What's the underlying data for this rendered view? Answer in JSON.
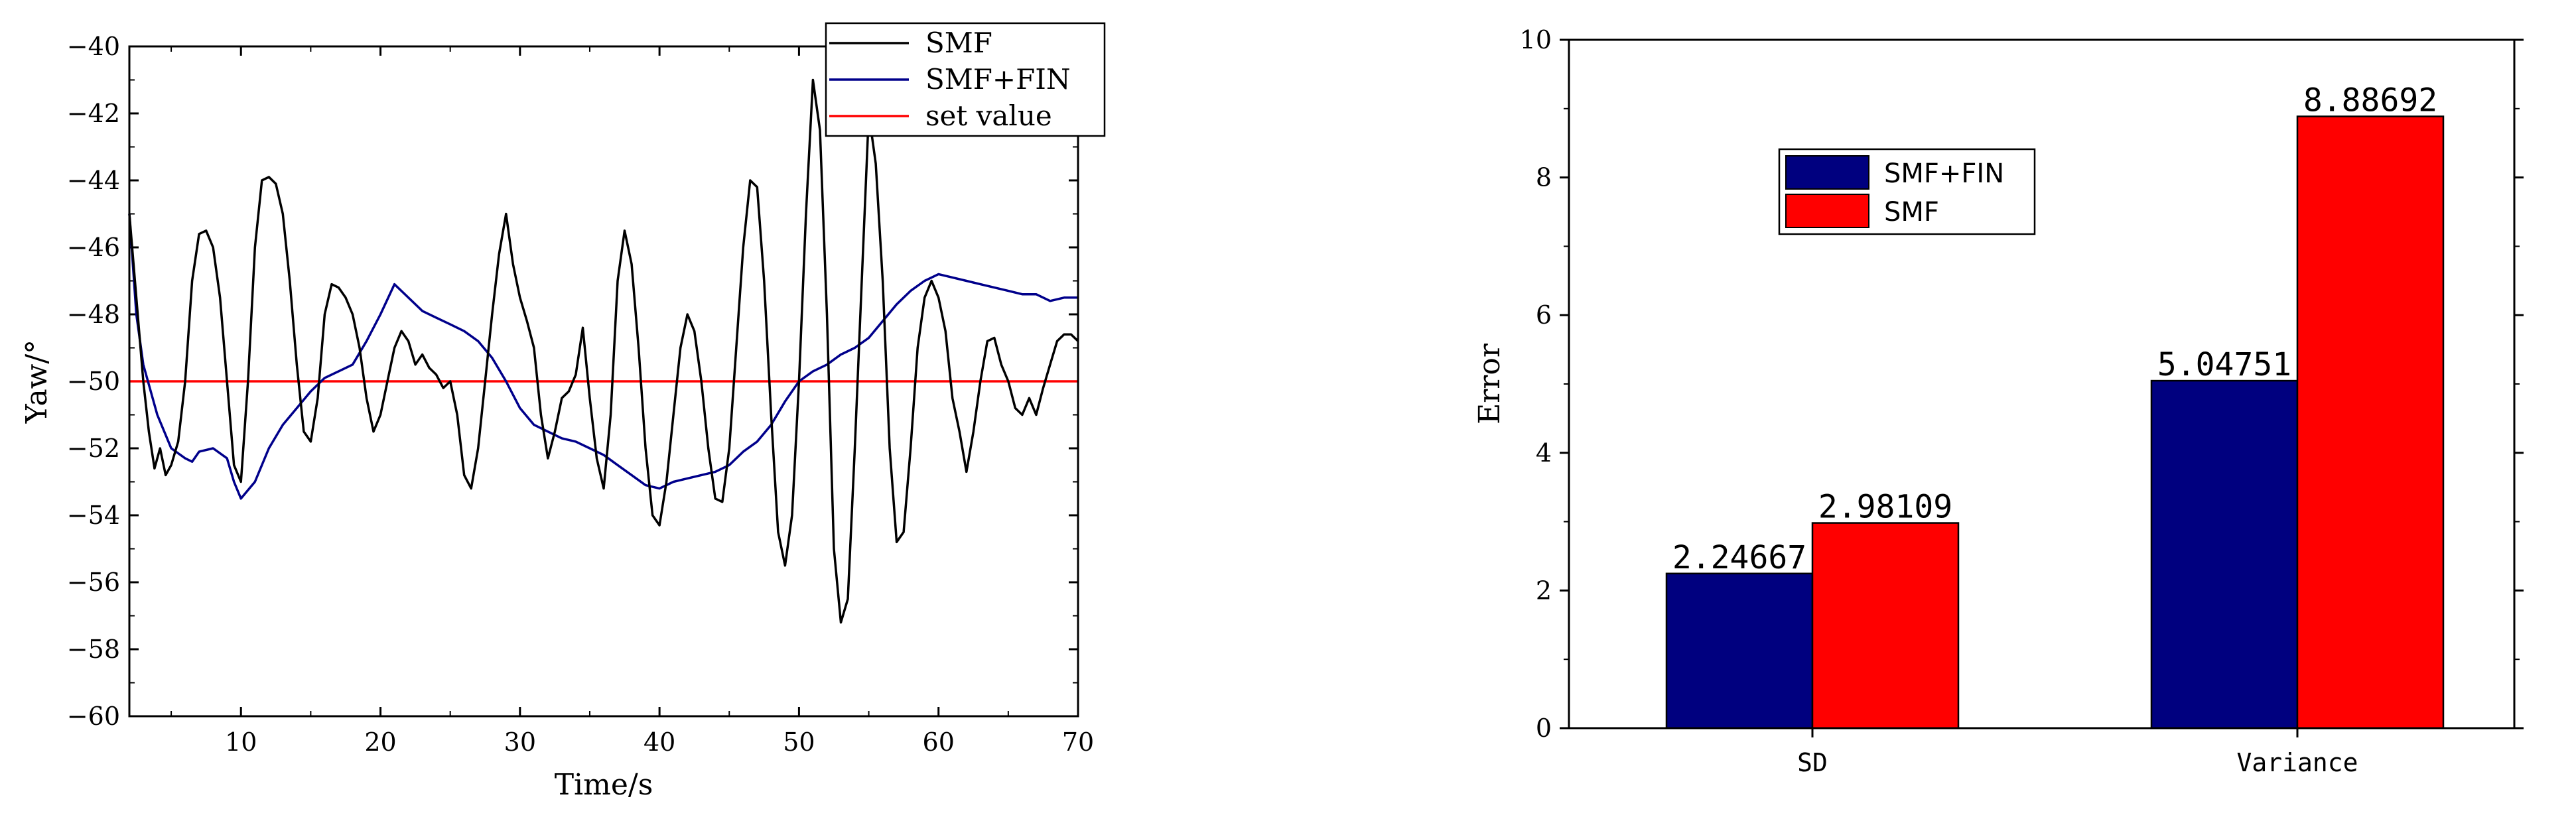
{
  "chart_data": [
    {
      "type": "line",
      "xlabel": "Time/s",
      "ylabel": "Yaw/°",
      "xlim": [
        2,
        70
      ],
      "ylim": [
        -60,
        -40
      ],
      "xticks": [
        10,
        20,
        30,
        40,
        50,
        60,
        70
      ],
      "yticks": [
        -60,
        -58,
        -56,
        -54,
        -52,
        -50,
        -48,
        -46,
        -44,
        -42,
        -40
      ],
      "legend_position": "top-right",
      "series": [
        {
          "name": "SMF",
          "color": "#000000",
          "points": [
            [
              2.0,
              -45.0
            ],
            [
              2.5,
              -47.5
            ],
            [
              3.0,
              -50.0
            ],
            [
              3.4,
              -51.5
            ],
            [
              3.8,
              -52.6
            ],
            [
              4.2,
              -52.0
            ],
            [
              4.6,
              -52.8
            ],
            [
              5.0,
              -52.5
            ],
            [
              5.5,
              -51.8
            ],
            [
              6.0,
              -50.0
            ],
            [
              6.5,
              -47.0
            ],
            [
              7.0,
              -45.6
            ],
            [
              7.5,
              -45.5
            ],
            [
              8.0,
              -46.0
            ],
            [
              8.5,
              -47.5
            ],
            [
              9.0,
              -50.0
            ],
            [
              9.5,
              -52.5
            ],
            [
              10.0,
              -53.0
            ],
            [
              10.5,
              -50.0
            ],
            [
              11.0,
              -46.0
            ],
            [
              11.5,
              -44.0
            ],
            [
              12.0,
              -43.9
            ],
            [
              12.5,
              -44.1
            ],
            [
              13.0,
              -45.0
            ],
            [
              13.5,
              -47.0
            ],
            [
              14.0,
              -49.5
            ],
            [
              14.5,
              -51.5
            ],
            [
              15.0,
              -51.8
            ],
            [
              15.5,
              -50.5
            ],
            [
              16.0,
              -48.0
            ],
            [
              16.5,
              -47.1
            ],
            [
              17.0,
              -47.2
            ],
            [
              17.5,
              -47.5
            ],
            [
              18.0,
              -48.0
            ],
            [
              18.5,
              -49.0
            ],
            [
              19.0,
              -50.5
            ],
            [
              19.5,
              -51.5
            ],
            [
              20.0,
              -51.0
            ],
            [
              20.5,
              -50.0
            ],
            [
              21.0,
              -49.0
            ],
            [
              21.5,
              -48.5
            ],
            [
              22.0,
              -48.8
            ],
            [
              22.5,
              -49.5
            ],
            [
              23.0,
              -49.2
            ],
            [
              23.5,
              -49.6
            ],
            [
              24.0,
              -49.8
            ],
            [
              24.5,
              -50.2
            ],
            [
              25.0,
              -50.0
            ],
            [
              25.5,
              -51.0
            ],
            [
              26.0,
              -52.8
            ],
            [
              26.5,
              -53.2
            ],
            [
              27.0,
              -52.0
            ],
            [
              27.5,
              -50.0
            ],
            [
              28.0,
              -48.0
            ],
            [
              28.5,
              -46.2
            ],
            [
              29.0,
              -45.0
            ],
            [
              29.5,
              -46.5
            ],
            [
              30.0,
              -47.5
            ],
            [
              30.5,
              -48.2
            ],
            [
              31.0,
              -49.0
            ],
            [
              31.5,
              -51.0
            ],
            [
              32.0,
              -52.3
            ],
            [
              32.5,
              -51.5
            ],
            [
              33.0,
              -50.5
            ],
            [
              33.5,
              -50.3
            ],
            [
              34.0,
              -49.8
            ],
            [
              34.5,
              -48.4
            ],
            [
              35.0,
              -50.5
            ],
            [
              35.5,
              -52.3
            ],
            [
              36.0,
              -53.2
            ],
            [
              36.5,
              -51.0
            ],
            [
              37.0,
              -47.0
            ],
            [
              37.5,
              -45.5
            ],
            [
              38.0,
              -46.5
            ],
            [
              38.5,
              -49.0
            ],
            [
              39.0,
              -52.0
            ],
            [
              39.5,
              -54.0
            ],
            [
              40.0,
              -54.3
            ],
            [
              40.5,
              -53.0
            ],
            [
              41.0,
              -51.0
            ],
            [
              41.5,
              -49.0
            ],
            [
              42.0,
              -48.0
            ],
            [
              42.5,
              -48.5
            ],
            [
              43.0,
              -50.0
            ],
            [
              43.5,
              -52.0
            ],
            [
              44.0,
              -53.5
            ],
            [
              44.5,
              -53.6
            ],
            [
              45.0,
              -52.0
            ],
            [
              45.5,
              -49.0
            ],
            [
              46.0,
              -46.0
            ],
            [
              46.5,
              -44.0
            ],
            [
              47.0,
              -44.2
            ],
            [
              47.5,
              -47.0
            ],
            [
              48.0,
              -51.0
            ],
            [
              48.5,
              -54.5
            ],
            [
              49.0,
              -55.5
            ],
            [
              49.5,
              -54.0
            ],
            [
              50.0,
              -50.0
            ],
            [
              50.5,
              -45.0
            ],
            [
              51.0,
              -41.0
            ],
            [
              51.5,
              -42.5
            ],
            [
              52.0,
              -48.0
            ],
            [
              52.5,
              -55.0
            ],
            [
              53.0,
              -57.2
            ],
            [
              53.5,
              -56.5
            ],
            [
              54.0,
              -52.0
            ],
            [
              54.5,
              -47.0
            ],
            [
              55.0,
              -42.0
            ],
            [
              55.5,
              -43.5
            ],
            [
              56.0,
              -47.0
            ],
            [
              56.5,
              -52.0
            ],
            [
              57.0,
              -54.8
            ],
            [
              57.5,
              -54.5
            ],
            [
              58.0,
              -52.0
            ],
            [
              58.5,
              -49.0
            ],
            [
              59.0,
              -47.5
            ],
            [
              59.5,
              -47.0
            ],
            [
              60.0,
              -47.5
            ],
            [
              60.5,
              -48.5
            ],
            [
              61.0,
              -50.5
            ],
            [
              61.5,
              -51.5
            ],
            [
              62.0,
              -52.7
            ],
            [
              62.5,
              -51.5
            ],
            [
              63.0,
              -50.0
            ],
            [
              63.5,
              -48.8
            ],
            [
              64.0,
              -48.7
            ],
            [
              64.5,
              -49.5
            ],
            [
              65.0,
              -50.0
            ],
            [
              65.5,
              -50.8
            ],
            [
              66.0,
              -51.0
            ],
            [
              66.5,
              -50.5
            ],
            [
              67.0,
              -51.0
            ],
            [
              67.5,
              -50.2
            ],
            [
              68.0,
              -49.5
            ],
            [
              68.5,
              -48.8
            ],
            [
              69.0,
              -48.6
            ],
            [
              69.5,
              -48.6
            ],
            [
              70.0,
              -48.8
            ]
          ]
        },
        {
          "name": "SMF+FIN",
          "color": "#00008b",
          "points": [
            [
              2.0,
              -45.0
            ],
            [
              2.5,
              -48.0
            ],
            [
              3.0,
              -49.5
            ],
            [
              4.0,
              -51.0
            ],
            [
              5.0,
              -52.0
            ],
            [
              6.0,
              -52.3
            ],
            [
              6.5,
              -52.4
            ],
            [
              7.0,
              -52.1
            ],
            [
              8.0,
              -52.0
            ],
            [
              9.0,
              -52.3
            ],
            [
              9.5,
              -53.0
            ],
            [
              10.0,
              -53.5
            ],
            [
              11.0,
              -53.0
            ],
            [
              12.0,
              -52.0
            ],
            [
              13.0,
              -51.3
            ],
            [
              14.0,
              -50.8
            ],
            [
              15.0,
              -50.3
            ],
            [
              16.0,
              -49.9
            ],
            [
              17.0,
              -49.7
            ],
            [
              18.0,
              -49.5
            ],
            [
              19.0,
              -48.8
            ],
            [
              20.0,
              -48.0
            ],
            [
              21.0,
              -47.1
            ],
            [
              22.0,
              -47.5
            ],
            [
              23.0,
              -47.9
            ],
            [
              24.0,
              -48.1
            ],
            [
              25.0,
              -48.3
            ],
            [
              26.0,
              -48.5
            ],
            [
              27.0,
              -48.8
            ],
            [
              28.0,
              -49.3
            ],
            [
              29.0,
              -50.0
            ],
            [
              30.0,
              -50.8
            ],
            [
              31.0,
              -51.3
            ],
            [
              32.0,
              -51.5
            ],
            [
              33.0,
              -51.7
            ],
            [
              34.0,
              -51.8
            ],
            [
              35.0,
              -52.0
            ],
            [
              36.0,
              -52.2
            ],
            [
              37.0,
              -52.5
            ],
            [
              38.0,
              -52.8
            ],
            [
              39.0,
              -53.1
            ],
            [
              40.0,
              -53.2
            ],
            [
              41.0,
              -53.0
            ],
            [
              42.0,
              -52.9
            ],
            [
              43.0,
              -52.8
            ],
            [
              44.0,
              -52.7
            ],
            [
              45.0,
              -52.5
            ],
            [
              46.0,
              -52.1
            ],
            [
              47.0,
              -51.8
            ],
            [
              48.0,
              -51.3
            ],
            [
              49.0,
              -50.6
            ],
            [
              50.0,
              -50.0
            ],
            [
              51.0,
              -49.7
            ],
            [
              52.0,
              -49.5
            ],
            [
              53.0,
              -49.2
            ],
            [
              54.0,
              -49.0
            ],
            [
              55.0,
              -48.7
            ],
            [
              56.0,
              -48.2
            ],
            [
              57.0,
              -47.7
            ],
            [
              58.0,
              -47.3
            ],
            [
              59.0,
              -47.0
            ],
            [
              60.0,
              -46.8
            ],
            [
              61.0,
              -46.9
            ],
            [
              62.0,
              -47.0
            ],
            [
              63.0,
              -47.1
            ],
            [
              64.0,
              -47.2
            ],
            [
              65.0,
              -47.3
            ],
            [
              66.0,
              -47.4
            ],
            [
              67.0,
              -47.4
            ],
            [
              68.0,
              -47.6
            ],
            [
              69.0,
              -47.5
            ],
            [
              70.0,
              -47.5
            ]
          ]
        },
        {
          "name": "set value",
          "color": "#ff0000",
          "points": [
            [
              2,
              -50
            ],
            [
              70,
              -50
            ]
          ]
        }
      ]
    },
    {
      "type": "bar",
      "xlabel": "",
      "ylabel": "Error",
      "ylim": [
        0,
        10
      ],
      "yticks": [
        0,
        2,
        4,
        6,
        8,
        10
      ],
      "categories": [
        "SD",
        "Variance"
      ],
      "legend_position": "upper-left inside",
      "series": [
        {
          "name": "SMF+FIN",
          "color": "#00007f",
          "values": [
            2.24667,
            5.04751
          ],
          "labels": [
            "2.24667",
            "5.04751"
          ]
        },
        {
          "name": "SMF",
          "color": "#ff0000",
          "values": [
            2.98109,
            8.88692
          ],
          "labels": [
            "2.98109",
            "8.88692"
          ]
        }
      ]
    }
  ]
}
